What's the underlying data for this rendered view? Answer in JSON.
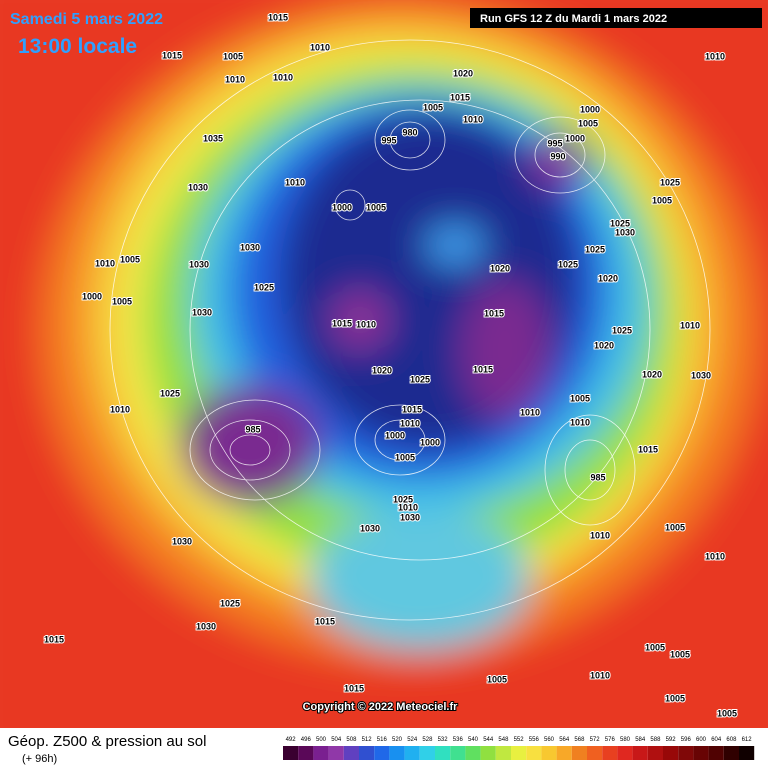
{
  "header": {
    "date": "Samedi 5 mars 2022",
    "time": "13:00 locale",
    "run": "Run GFS 12 Z du Mardi 1 mars 2022"
  },
  "footer": {
    "title": "Géop. Z500 & pression au sol",
    "lead": "(+ 96h)",
    "copyright": "Copyright © 2022 Meteociel.fr"
  },
  "colorbar": {
    "labels": [
      "492",
      "496",
      "500",
      "504",
      "508",
      "512",
      "516",
      "520",
      "524",
      "528",
      "532",
      "536",
      "540",
      "544",
      "548",
      "552",
      "556",
      "560",
      "564",
      "568",
      "572",
      "576",
      "580",
      "584",
      "588",
      "592",
      "596",
      "600",
      "604",
      "608",
      "612"
    ]
  },
  "isobars": [
    "1015",
    "1010",
    "1015",
    "1005",
    "1010",
    "1010",
    "1020",
    "1015",
    "1005",
    "1010",
    "980",
    "995",
    "1000",
    "1005",
    "1000",
    "995",
    "990",
    "1035",
    "1030",
    "1010",
    "1000",
    "1005",
    "1025",
    "1005",
    "1025",
    "1030",
    "1030",
    "1010",
    "1005",
    "1030",
    "1025",
    "1025",
    "1020",
    "1020",
    "1025",
    "1000",
    "1005",
    "1030",
    "1015",
    "1010",
    "1015",
    "1025",
    "1010",
    "1020",
    "1020",
    "1025",
    "1015",
    "1020",
    "1030",
    "1025",
    "1005",
    "1010",
    "1015",
    "1010",
    "1010",
    "1010",
    "985",
    "1000",
    "1000",
    "1005",
    "985",
    "1015",
    "1025",
    "1010",
    "1030",
    "1030",
    "1010",
    "1005",
    "1030",
    "1010",
    "1025",
    "1030",
    "1015",
    "1015",
    "1005",
    "1005",
    "1005",
    "1015",
    "1005",
    "1005",
    "1010",
    "1010"
  ]
}
